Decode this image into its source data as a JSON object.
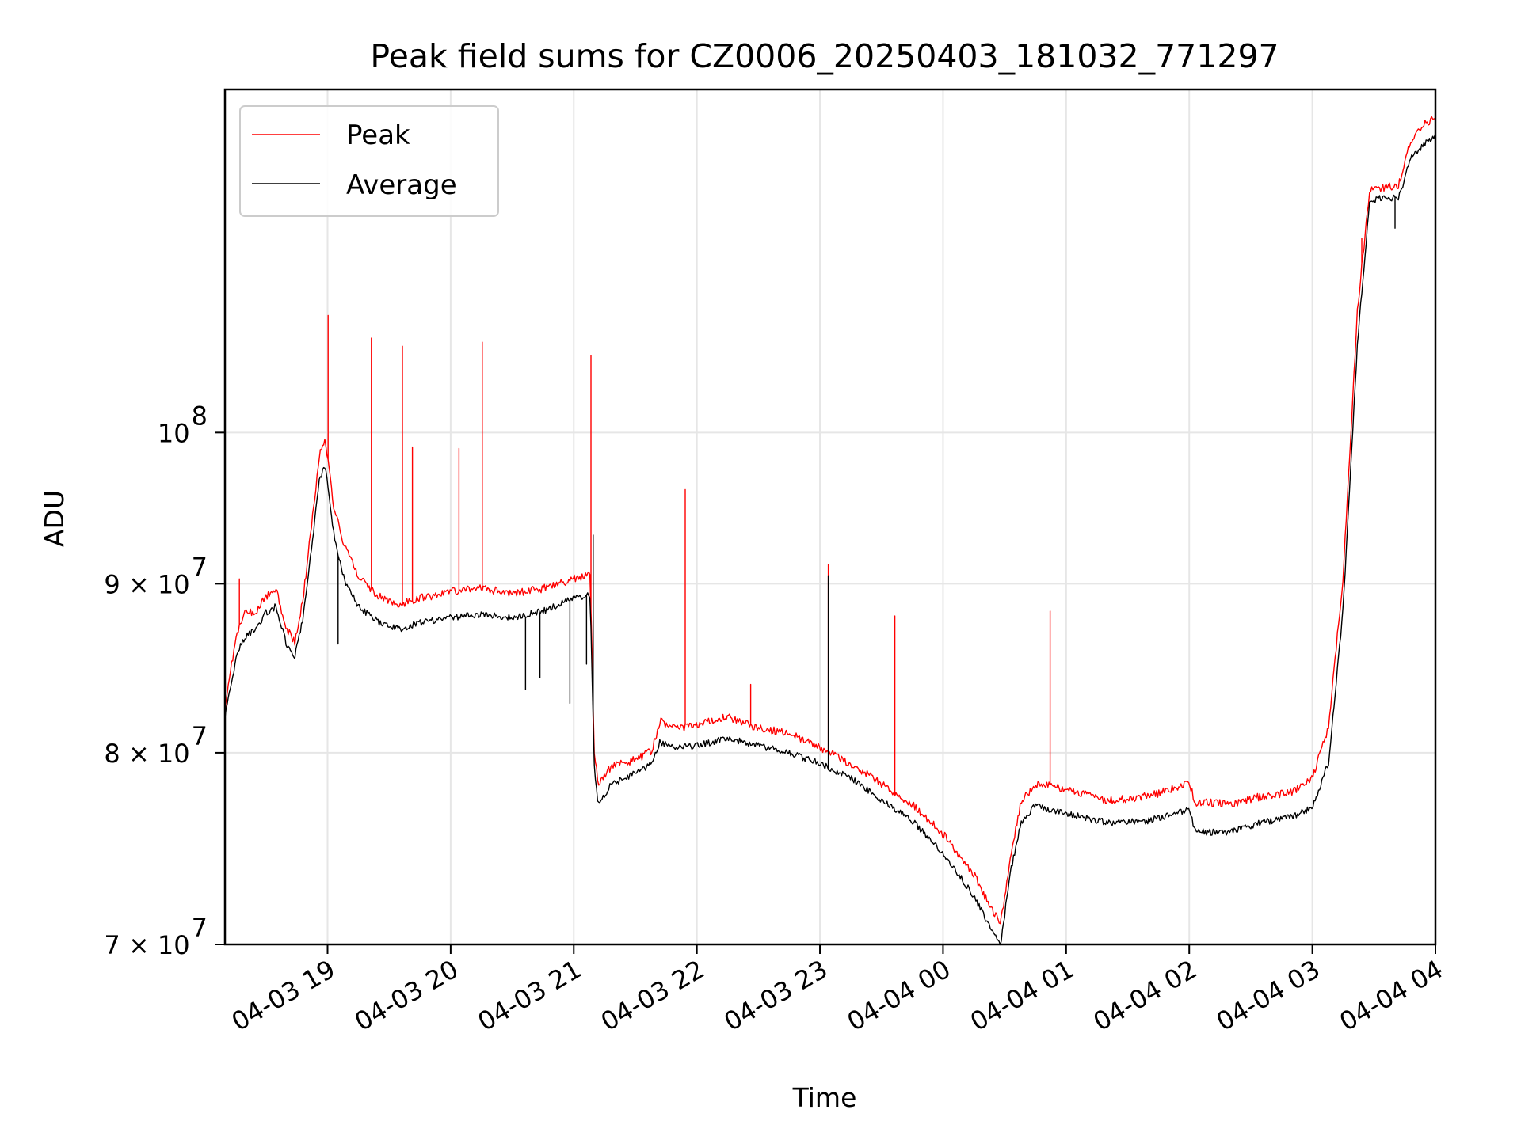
{
  "chart_data": {
    "type": "line",
    "title": "Peak field sums for CZ0006_20250403_181032_771297",
    "xlabel": "Time",
    "ylabel": "ADU",
    "y_scale": "log",
    "xlim": [
      "2025-04-03 18:10",
      "2025-04-04 04:00"
    ],
    "ylim": [
      70000000,
      127000000
    ],
    "grid": true,
    "legend_position": "top-left",
    "x_ticks": [
      {
        "value": "2025-04-03 19:00",
        "label": "04-03 19"
      },
      {
        "value": "2025-04-03 20:00",
        "label": "04-03 20"
      },
      {
        "value": "2025-04-03 21:00",
        "label": "04-03 21"
      },
      {
        "value": "2025-04-03 22:00",
        "label": "04-03 22"
      },
      {
        "value": "2025-04-03 23:00",
        "label": "04-03 23"
      },
      {
        "value": "2025-04-04 00:00",
        "label": "04-04 00"
      },
      {
        "value": "2025-04-04 01:00",
        "label": "04-04 01"
      },
      {
        "value": "2025-04-04 02:00",
        "label": "04-04 02"
      },
      {
        "value": "2025-04-04 03:00",
        "label": "04-04 03"
      },
      {
        "value": "2025-04-04 04:00",
        "label": "04-04 04"
      }
    ],
    "y_ticks": [
      {
        "value": 70000000,
        "base": "7",
        "label": "7 × 10",
        "exp": "7"
      },
      {
        "value": 80000000,
        "base": "8",
        "label": "8 × 10",
        "exp": "7"
      },
      {
        "value": 90000000,
        "base": "9",
        "label": "9 × 10",
        "exp": "7"
      },
      {
        "value": 100000000,
        "base": "",
        "label": "10",
        "exp": "8"
      }
    ],
    "series": [
      {
        "name": "Peak",
        "color": "#ff0000",
        "points": [
          [
            "2025-04-03 18:10",
            82500000
          ],
          [
            "2025-04-03 18:13",
            85000000
          ],
          [
            "2025-04-03 18:16",
            87000000
          ],
          [
            "2025-04-03 18:20",
            88200000
          ],
          [
            "2025-04-03 18:25",
            88300000
          ],
          [
            "2025-04-03 18:30",
            89200000
          ],
          [
            "2025-04-03 18:35",
            89600000
          ],
          [
            "2025-04-03 18:40",
            87200000
          ],
          [
            "2025-04-03 18:44",
            86400000
          ],
          [
            "2025-04-03 18:48",
            89000000
          ],
          [
            "2025-04-03 18:52",
            93500000
          ],
          [
            "2025-04-03 18:56",
            98500000
          ],
          [
            "2025-04-03 18:59",
            99500000
          ],
          [
            "2025-04-03 19:03",
            95000000
          ],
          [
            "2025-04-03 19:08",
            92500000
          ],
          [
            "2025-04-03 19:15",
            90500000
          ],
          [
            "2025-04-03 19:25",
            89200000
          ],
          [
            "2025-04-03 19:35",
            88700000
          ],
          [
            "2025-04-03 19:45",
            89100000
          ],
          [
            "2025-04-03 20:00",
            89500000
          ],
          [
            "2025-04-03 20:15",
            89700000
          ],
          [
            "2025-04-03 20:30",
            89400000
          ],
          [
            "2025-04-03 20:45",
            89700000
          ],
          [
            "2025-04-03 21:00",
            90300000
          ],
          [
            "2025-04-03 21:08",
            90600000
          ],
          [
            "2025-04-03 21:10",
            80000000
          ],
          [
            "2025-04-03 21:12",
            78300000
          ],
          [
            "2025-04-03 21:18",
            79200000
          ],
          [
            "2025-04-03 21:30",
            79600000
          ],
          [
            "2025-04-03 21:38",
            80100000
          ],
          [
            "2025-04-03 21:42",
            81800000
          ],
          [
            "2025-04-03 21:50",
            81300000
          ],
          [
            "2025-04-03 22:00",
            81600000
          ],
          [
            "2025-04-03 22:15",
            82000000
          ],
          [
            "2025-04-03 22:30",
            81400000
          ],
          [
            "2025-04-03 22:45",
            81100000
          ],
          [
            "2025-04-03 23:00",
            80300000
          ],
          [
            "2025-04-03 23:15",
            79400000
          ],
          [
            "2025-04-03 23:30",
            78300000
          ],
          [
            "2025-04-03 23:45",
            77200000
          ],
          [
            "2025-04-04 00:00",
            75600000
          ],
          [
            "2025-04-04 00:15",
            73500000
          ],
          [
            "2025-04-04 00:25",
            71500000
          ],
          [
            "2025-04-04 00:28",
            71000000
          ],
          [
            "2025-04-04 00:33",
            74500000
          ],
          [
            "2025-04-04 00:38",
            77300000
          ],
          [
            "2025-04-04 00:45",
            78300000
          ],
          [
            "2025-04-04 01:00",
            78000000
          ],
          [
            "2025-04-04 01:20",
            77400000
          ],
          [
            "2025-04-04 01:40",
            77600000
          ],
          [
            "2025-04-04 02:00",
            78300000
          ],
          [
            "2025-04-04 02:03",
            77300000
          ],
          [
            "2025-04-04 02:20",
            77200000
          ],
          [
            "2025-04-04 02:35",
            77600000
          ],
          [
            "2025-04-04 02:50",
            77800000
          ],
          [
            "2025-04-04 03:00",
            78600000
          ],
          [
            "2025-04-04 03:08",
            81500000
          ],
          [
            "2025-04-04 03:15",
            90500000
          ],
          [
            "2025-04-04 03:22",
            109000000
          ],
          [
            "2025-04-04 03:28",
            118500000
          ],
          [
            "2025-04-04 03:35",
            118600000
          ],
          [
            "2025-04-04 03:42",
            118800000
          ],
          [
            "2025-04-04 03:48",
            122500000
          ],
          [
            "2025-04-04 03:55",
            124000000
          ],
          [
            "2025-04-04 04:00",
            124500000
          ]
        ],
        "spikes": [
          [
            "2025-04-03 18:17",
            90300000
          ],
          [
            "2025-04-03 19:00",
            108500000
          ],
          [
            "2025-04-03 19:21",
            106800000
          ],
          [
            "2025-04-03 19:36",
            106200000
          ],
          [
            "2025-04-03 19:41",
            99000000
          ],
          [
            "2025-04-03 20:04",
            98900000
          ],
          [
            "2025-04-03 20:15",
            106500000
          ],
          [
            "2025-04-03 21:08",
            105500000
          ],
          [
            "2025-04-03 21:54",
            96100000
          ],
          [
            "2025-04-03 22:26",
            83900000
          ],
          [
            "2025-04-03 23:04",
            91200000
          ],
          [
            "2025-04-03 23:36",
            88000000
          ],
          [
            "2025-04-04 00:52",
            88300000
          ],
          [
            "2025-04-04 03:24",
            114500000
          ]
        ]
      },
      {
        "name": "Average",
        "color": "#000000",
        "points": [
          [
            "2025-04-03 18:10",
            82000000
          ],
          [
            "2025-04-03 18:13",
            83800000
          ],
          [
            "2025-04-03 18:16",
            85900000
          ],
          [
            "2025-04-03 18:20",
            86700000
          ],
          [
            "2025-04-03 18:25",
            87200000
          ],
          [
            "2025-04-03 18:30",
            88200000
          ],
          [
            "2025-04-03 18:35",
            88600000
          ],
          [
            "2025-04-03 18:40",
            86300000
          ],
          [
            "2025-04-03 18:44",
            85500000
          ],
          [
            "2025-04-03 18:48",
            87800000
          ],
          [
            "2025-04-03 18:52",
            92000000
          ],
          [
            "2025-04-03 18:56",
            96800000
          ],
          [
            "2025-04-03 18:59",
            97700000
          ],
          [
            "2025-04-03 19:03",
            93200000
          ],
          [
            "2025-04-03 19:08",
            90300000
          ],
          [
            "2025-04-03 19:15",
            88600000
          ],
          [
            "2025-04-03 19:25",
            87600000
          ],
          [
            "2025-04-03 19:35",
            87200000
          ],
          [
            "2025-04-03 19:45",
            87600000
          ],
          [
            "2025-04-03 20:00",
            87900000
          ],
          [
            "2025-04-03 20:15",
            88100000
          ],
          [
            "2025-04-03 20:30",
            87900000
          ],
          [
            "2025-04-03 20:45",
            88300000
          ],
          [
            "2025-04-03 21:00",
            89100000
          ],
          [
            "2025-04-03 21:08",
            89300000
          ],
          [
            "2025-04-03 21:10",
            79200000
          ],
          [
            "2025-04-03 21:12",
            77100000
          ],
          [
            "2025-04-03 21:18",
            78200000
          ],
          [
            "2025-04-03 21:30",
            78900000
          ],
          [
            "2025-04-03 21:38",
            79400000
          ],
          [
            "2025-04-03 21:42",
            80600000
          ],
          [
            "2025-04-03 21:50",
            80300000
          ],
          [
            "2025-04-03 22:00",
            80400000
          ],
          [
            "2025-04-03 22:15",
            80800000
          ],
          [
            "2025-04-03 22:30",
            80400000
          ],
          [
            "2025-04-03 22:45",
            80000000
          ],
          [
            "2025-04-03 23:00",
            79400000
          ],
          [
            "2025-04-03 23:15",
            78600000
          ],
          [
            "2025-04-03 23:30",
            77400000
          ],
          [
            "2025-04-03 23:45",
            76300000
          ],
          [
            "2025-04-04 00:00",
            74600000
          ],
          [
            "2025-04-04 00:15",
            72400000
          ],
          [
            "2025-04-04 00:25",
            70400000
          ],
          [
            "2025-04-04 00:28",
            70000000
          ],
          [
            "2025-04-04 00:33",
            73700000
          ],
          [
            "2025-04-04 00:38",
            76200000
          ],
          [
            "2025-04-04 00:45",
            77100000
          ],
          [
            "2025-04-04 01:00",
            76700000
          ],
          [
            "2025-04-04 01:20",
            76200000
          ],
          [
            "2025-04-04 01:40",
            76300000
          ],
          [
            "2025-04-04 02:00",
            76900000
          ],
          [
            "2025-04-04 02:03",
            75700000
          ],
          [
            "2025-04-04 02:20",
            75700000
          ],
          [
            "2025-04-04 02:35",
            76200000
          ],
          [
            "2025-04-04 02:50",
            76500000
          ],
          [
            "2025-04-04 03:00",
            77000000
          ],
          [
            "2025-04-04 03:08",
            79500000
          ],
          [
            "2025-04-04 03:15",
            88500000
          ],
          [
            "2025-04-04 03:22",
            106500000
          ],
          [
            "2025-04-04 03:28",
            117500000
          ],
          [
            "2025-04-04 03:35",
            117800000
          ],
          [
            "2025-04-04 03:42",
            117700000
          ],
          [
            "2025-04-04 03:48",
            121000000
          ],
          [
            "2025-04-04 03:55",
            122300000
          ],
          [
            "2025-04-04 04:00",
            123000000
          ]
        ],
        "spikes": [
          [
            "2025-04-03 19:05",
            86300000
          ],
          [
            "2025-04-03 20:36",
            83600000
          ],
          [
            "2025-04-03 20:43",
            84300000
          ],
          [
            "2025-04-03 20:58",
            82800000
          ],
          [
            "2025-04-03 20:58",
            83400000
          ],
          [
            "2025-04-03 21:06",
            85100000
          ],
          [
            "2025-04-03 21:09",
            93100000
          ],
          [
            "2025-04-03 23:04",
            90500000
          ],
          [
            "2025-04-04 03:40",
            115300000
          ]
        ]
      }
    ]
  }
}
